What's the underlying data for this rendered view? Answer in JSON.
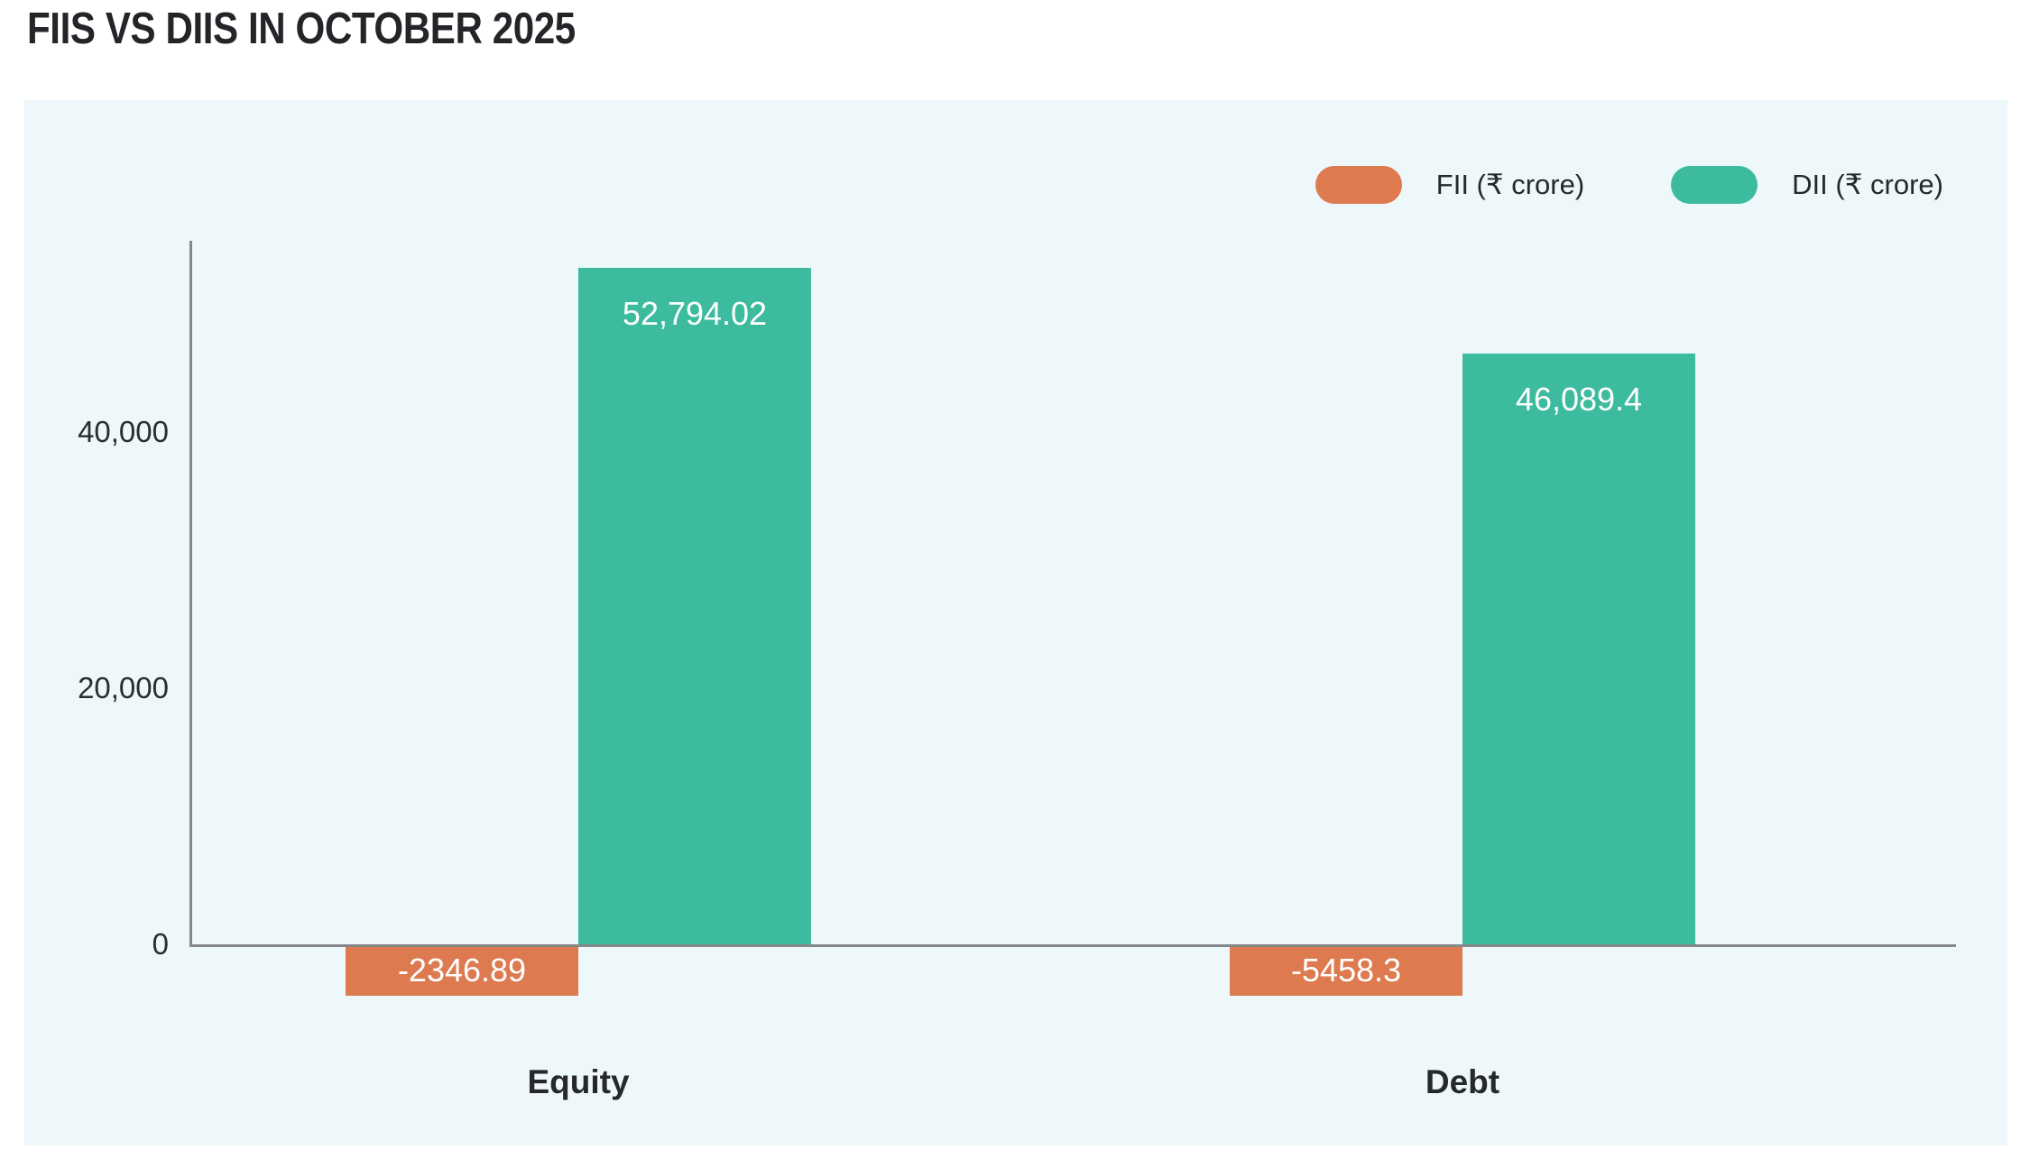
{
  "title": "FIIS VS DIIS IN OCTOBER 2025",
  "legend": {
    "fii_label": "FII (₹ crore)",
    "dii_label": "DII (₹ crore)"
  },
  "colors": {
    "fii": "#DD7A50",
    "dii": "#3DBB9E",
    "panel_background": "#EEF7FA",
    "axis": "#85878B",
    "text": "#26282B",
    "bar_label_text": "#FFFFFF"
  },
  "chart_data": {
    "type": "bar",
    "title": "FIIS VS DIIS IN OCTOBER 2025",
    "categories": [
      "Equity",
      "Debt"
    ],
    "series": [
      {
        "name": "FII (₹ crore)",
        "color": "#DD7A50",
        "values": [
          -2346.89,
          -5458.3
        ],
        "data_labels": [
          "-2346.89",
          "-5458.3"
        ]
      },
      {
        "name": "DII (₹ crore)",
        "color": "#3DBB9E",
        "values": [
          52794.02,
          46089.4
        ],
        "data_labels": [
          "52,794.02",
          "46,089.4"
        ]
      }
    ],
    "y_axis": {
      "ticks": [
        0,
        20000,
        40000
      ],
      "tick_labels": [
        "0",
        "20,000",
        "40,000"
      ],
      "visible_range": [
        -6000,
        55000
      ]
    },
    "xlabel": "",
    "ylabel": "",
    "grid": false,
    "legend_position": "top-right",
    "data_label_position": "inside-top"
  }
}
